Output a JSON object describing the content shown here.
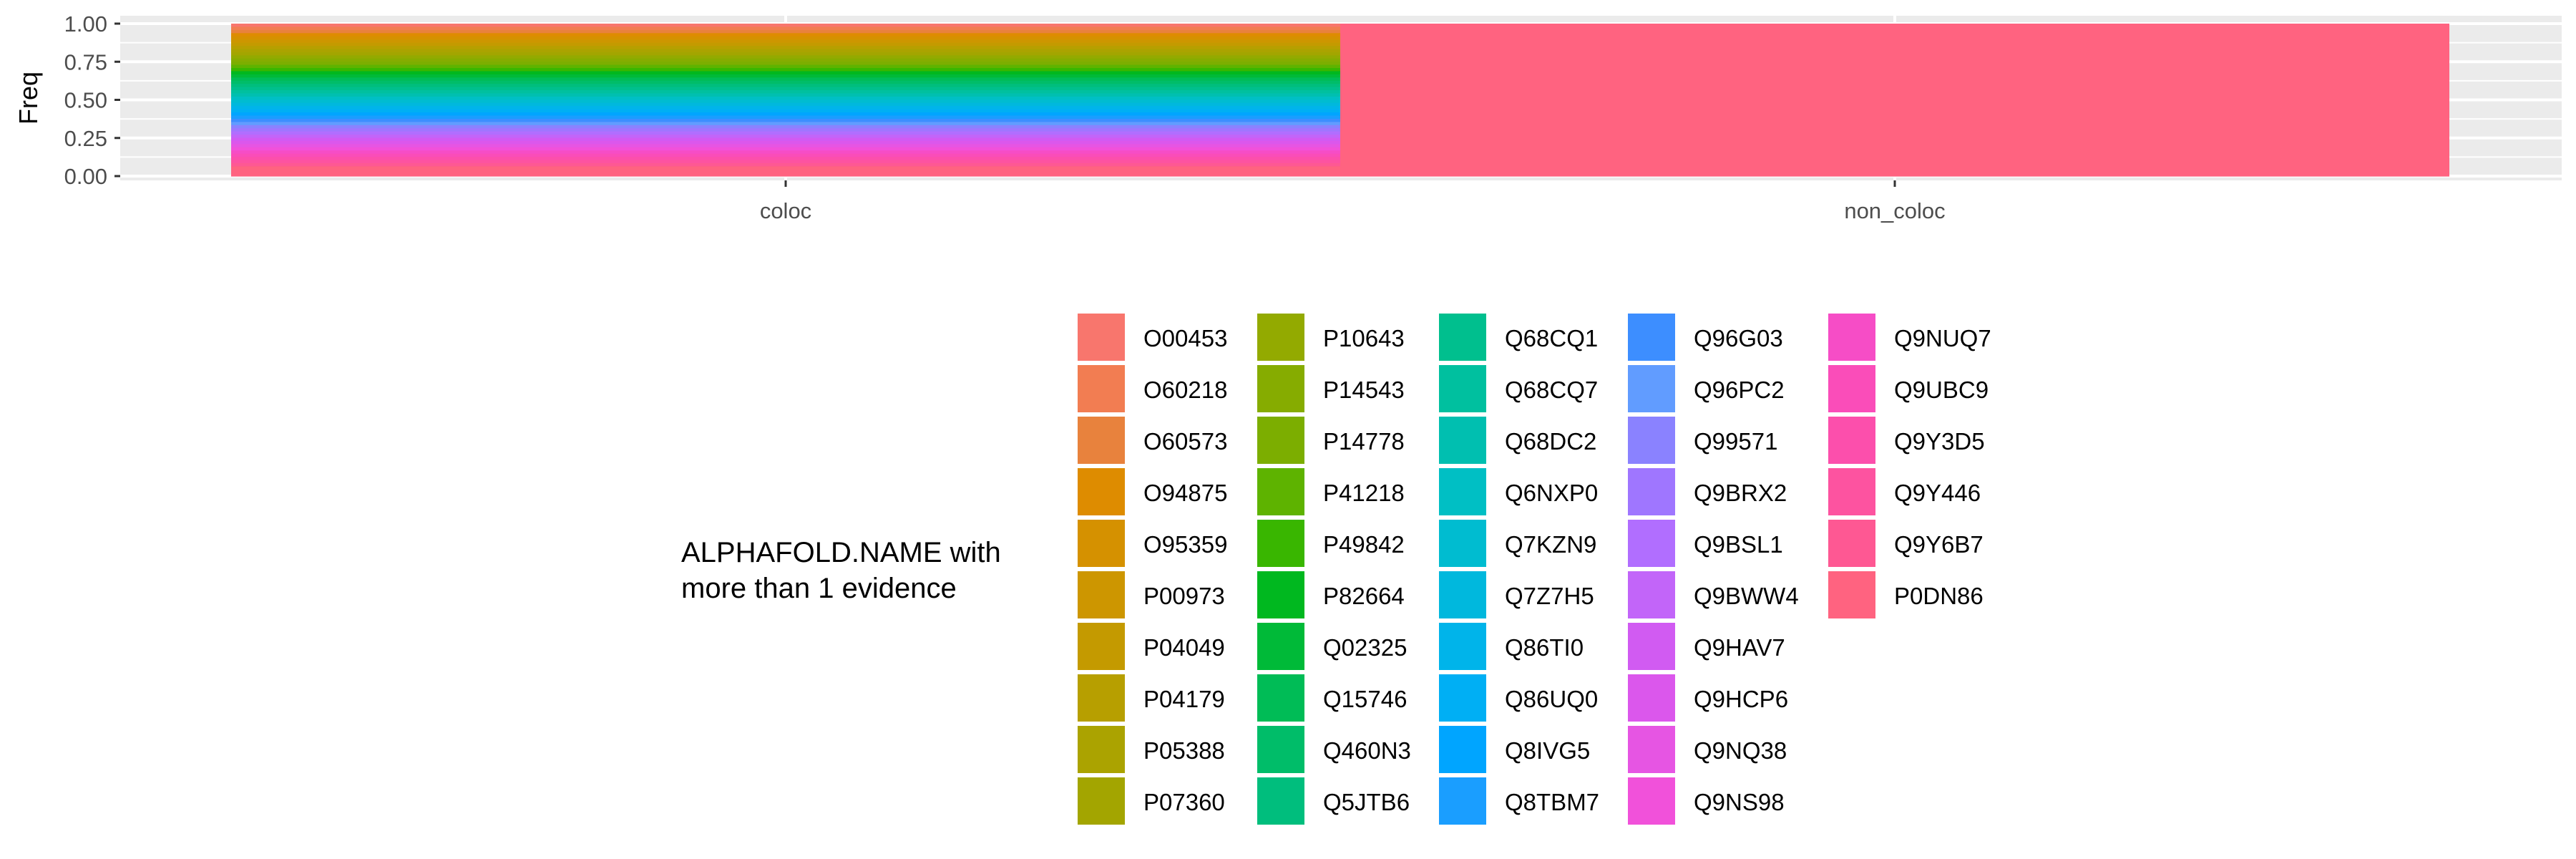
{
  "chart_data": {
    "type": "bar",
    "stacked": true,
    "categories": [
      "coloc",
      "non_coloc"
    ],
    "ylabel": "Freq",
    "ylim": [
      0,
      1
    ],
    "yticks": [
      "0.00",
      "0.25",
      "0.50",
      "0.75",
      "1.00"
    ],
    "grid": true,
    "legend": {
      "title_lines": [
        "ALPHAFOLD.NAME with",
        "more than 1 evidence"
      ],
      "placement": "bottom",
      "columns": 5
    },
    "series": [
      {
        "name": "O00453",
        "color": "#F8766D",
        "values": [
          0.0208,
          0
        ]
      },
      {
        "name": "O60218",
        "color": "#F27D52",
        "values": [
          0.0208,
          0
        ]
      },
      {
        "name": "O60573",
        "color": "#E8823D",
        "values": [
          0.0208,
          0
        ]
      },
      {
        "name": "O94875",
        "color": "#DE8C00",
        "values": [
          0.0208,
          0
        ]
      },
      {
        "name": "O95359",
        "color": "#D59100",
        "values": [
          0.0208,
          0
        ]
      },
      {
        "name": "P00973",
        "color": "#CD9600",
        "values": [
          0.0208,
          0
        ]
      },
      {
        "name": "P04049",
        "color": "#C49A00",
        "values": [
          0.0208,
          0
        ]
      },
      {
        "name": "P04179",
        "color": "#B79F00",
        "values": [
          0.0208,
          0
        ]
      },
      {
        "name": "P05388",
        "color": "#ABA300",
        "values": [
          0.0208,
          0
        ]
      },
      {
        "name": "P07360",
        "color": "#A3A500",
        "values": [
          0.0208,
          0
        ]
      },
      {
        "name": "P10643",
        "color": "#93AA00",
        "values": [
          0.0208,
          0
        ]
      },
      {
        "name": "P14543",
        "color": "#86AC00",
        "values": [
          0.0208,
          0
        ]
      },
      {
        "name": "P14778",
        "color": "#7CAE00",
        "values": [
          0.0208,
          0
        ]
      },
      {
        "name": "P41218",
        "color": "#5EB300",
        "values": [
          0.0208,
          0
        ]
      },
      {
        "name": "P49842",
        "color": "#39B600",
        "values": [
          0.0208,
          0
        ]
      },
      {
        "name": "P82664",
        "color": "#00B81F",
        "values": [
          0.0208,
          0
        ]
      },
      {
        "name": "Q02325",
        "color": "#00BA38",
        "values": [
          0.0208,
          0
        ]
      },
      {
        "name": "Q15746",
        "color": "#00BC56",
        "values": [
          0.0208,
          0
        ]
      },
      {
        "name": "Q460N3",
        "color": "#00BD69",
        "values": [
          0.0208,
          0
        ]
      },
      {
        "name": "Q5JTB6",
        "color": "#00BE7D",
        "values": [
          0.0208,
          0
        ]
      },
      {
        "name": "Q68CQ1",
        "color": "#00BF8E",
        "values": [
          0.0208,
          0
        ]
      },
      {
        "name": "Q68CQ7",
        "color": "#00C09F",
        "values": [
          0.0208,
          0
        ]
      },
      {
        "name": "Q68DC2",
        "color": "#00BFB0",
        "values": [
          0.0208,
          0
        ]
      },
      {
        "name": "Q6NXP0",
        "color": "#00BFC4",
        "values": [
          0.0208,
          0
        ]
      },
      {
        "name": "Q7KZN9",
        "color": "#00BCD0",
        "values": [
          0.0208,
          0
        ]
      },
      {
        "name": "Q7Z7H5",
        "color": "#00B8DD",
        "values": [
          0.0208,
          0
        ]
      },
      {
        "name": "Q86TI0",
        "color": "#00B4EA",
        "values": [
          0.0208,
          0
        ]
      },
      {
        "name": "Q86UQ0",
        "color": "#00AFF4",
        "values": [
          0.0208,
          0
        ]
      },
      {
        "name": "Q8IVG5",
        "color": "#00A5FF",
        "values": [
          0.0208,
          0
        ]
      },
      {
        "name": "Q8TBM7",
        "color": "#1A9EFF",
        "values": [
          0.0208,
          0
        ]
      },
      {
        "name": "Q96G03",
        "color": "#3D8EFF",
        "values": [
          0.0208,
          0
        ]
      },
      {
        "name": "Q96PC2",
        "color": "#619CFF",
        "values": [
          0.0208,
          0
        ]
      },
      {
        "name": "Q99571",
        "color": "#8A82FF",
        "values": [
          0.0208,
          0
        ]
      },
      {
        "name": "Q9BRX2",
        "color": "#9F76FF",
        "values": [
          0.0208,
          0
        ]
      },
      {
        "name": "Q9BSL1",
        "color": "#B16EFF",
        "values": [
          0.0208,
          0
        ]
      },
      {
        "name": "Q9BWW4",
        "color": "#C265F9",
        "values": [
          0.0208,
          0
        ]
      },
      {
        "name": "Q9HAV7",
        "color": "#D15BF2",
        "values": [
          0.0208,
          0
        ]
      },
      {
        "name": "Q9HCP6",
        "color": "#DB57EC",
        "values": [
          0.0208,
          0
        ]
      },
      {
        "name": "Q9NQ38",
        "color": "#E655E3",
        "values": [
          0.0208,
          0
        ]
      },
      {
        "name": "Q9NS98",
        "color": "#F151DA",
        "values": [
          0.0208,
          0
        ]
      },
      {
        "name": "Q9NUQ7",
        "color": "#F64DC6",
        "values": [
          0.0208,
          0
        ]
      },
      {
        "name": "Q9UBC9",
        "color": "#FA4DB9",
        "values": [
          0.0208,
          0
        ]
      },
      {
        "name": "Q9Y3D5",
        "color": "#FC4FAC",
        "values": [
          0.0208,
          0
        ]
      },
      {
        "name": "Q9Y446",
        "color": "#FD53A0",
        "values": [
          0.0208,
          0
        ]
      },
      {
        "name": "Q9Y6B7",
        "color": "#FE5893",
        "values": [
          0.0208,
          0
        ]
      },
      {
        "name": "P0DN86",
        "color": "#FF6380",
        "values": [
          0.064,
          1.0
        ]
      }
    ]
  }
}
